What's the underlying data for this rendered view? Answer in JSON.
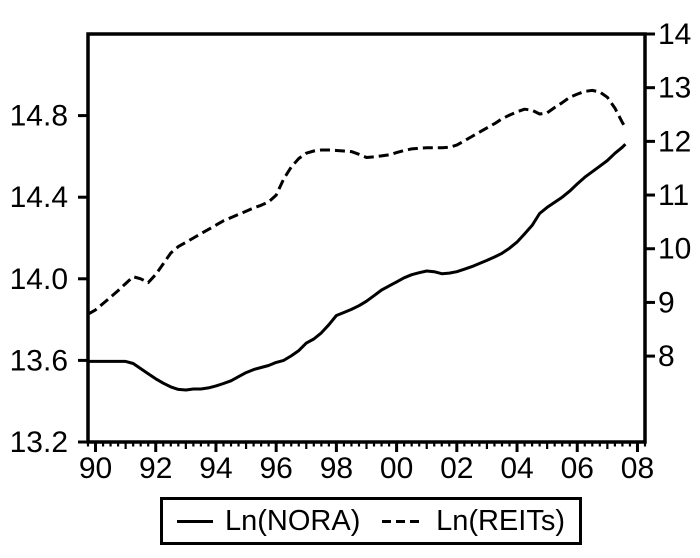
{
  "figure": {
    "background": "#ffffff",
    "ink_color": "#000000"
  },
  "legend": {
    "items": [
      {
        "label": "Ln(NORA)",
        "swatch": "solid-line"
      },
      {
        "label": "Ln(REITs)",
        "swatch": "dashed-line"
      }
    ]
  },
  "chart_data": {
    "type": "line",
    "title": "",
    "xlabel": "",
    "ylabel_left": "",
    "ylabel_right": "",
    "grid": false,
    "legend_position": "bottom",
    "x_axis": {
      "min": 1989.75,
      "max": 2008.25,
      "minor_step_years": 0.25,
      "major_tick_years": [
        1990,
        1992,
        1994,
        1996,
        1998,
        2000,
        2002,
        2004,
        2006,
        2008
      ],
      "tick_labels": [
        "90",
        "92",
        "94",
        "96",
        "98",
        "00",
        "02",
        "04",
        "06",
        "08"
      ]
    },
    "left_axis": {
      "series": "Ln(NORA)",
      "min": 13.2,
      "max": 15.2,
      "ticks": [
        13.2,
        13.6,
        14.0,
        14.4,
        14.8
      ],
      "tick_labels": [
        "13.2",
        "13.6",
        "14.0",
        "14.4",
        "14.8"
      ]
    },
    "right_axis": {
      "series": "Ln(REITs)",
      "min": 6.4,
      "max": 14.0,
      "ticks": [
        8,
        9,
        10,
        11,
        12,
        13,
        14
      ],
      "tick_labels": [
        "8",
        "9",
        "10",
        "11",
        "12",
        "13",
        "14"
      ]
    },
    "series": [
      {
        "name": "Ln(NORA)",
        "axis": "left",
        "line_style": "solid",
        "color": "#000000",
        "points": [
          [
            1989.75,
            13.595
          ],
          [
            1990.0,
            13.595
          ],
          [
            1990.25,
            13.595
          ],
          [
            1990.5,
            13.595
          ],
          [
            1990.75,
            13.595
          ],
          [
            1991.0,
            13.595
          ],
          [
            1991.25,
            13.585
          ],
          [
            1991.5,
            13.56
          ],
          [
            1991.75,
            13.535
          ],
          [
            1992.0,
            13.51
          ],
          [
            1992.25,
            13.488
          ],
          [
            1992.5,
            13.47
          ],
          [
            1992.75,
            13.458
          ],
          [
            1993.0,
            13.455
          ],
          [
            1993.25,
            13.46
          ],
          [
            1993.5,
            13.46
          ],
          [
            1993.75,
            13.465
          ],
          [
            1994.0,
            13.475
          ],
          [
            1994.25,
            13.487
          ],
          [
            1994.5,
            13.5
          ],
          [
            1994.75,
            13.52
          ],
          [
            1995.0,
            13.54
          ],
          [
            1995.25,
            13.555
          ],
          [
            1995.5,
            13.565
          ],
          [
            1995.75,
            13.575
          ],
          [
            1996.0,
            13.59
          ],
          [
            1996.25,
            13.6
          ],
          [
            1996.5,
            13.622
          ],
          [
            1996.75,
            13.648
          ],
          [
            1997.0,
            13.685
          ],
          [
            1997.25,
            13.705
          ],
          [
            1997.5,
            13.735
          ],
          [
            1997.75,
            13.775
          ],
          [
            1998.0,
            13.82
          ],
          [
            1998.25,
            13.835
          ],
          [
            1998.5,
            13.85
          ],
          [
            1998.75,
            13.868
          ],
          [
            1999.0,
            13.89
          ],
          [
            1999.25,
            13.917
          ],
          [
            1999.5,
            13.945
          ],
          [
            1999.75,
            13.965
          ],
          [
            2000.0,
            13.985
          ],
          [
            2000.25,
            14.005
          ],
          [
            2000.5,
            14.02
          ],
          [
            2000.75,
            14.03
          ],
          [
            2001.0,
            14.038
          ],
          [
            2001.25,
            14.035
          ],
          [
            2001.5,
            14.025
          ],
          [
            2001.75,
            14.028
          ],
          [
            2002.0,
            14.035
          ],
          [
            2002.25,
            14.047
          ],
          [
            2002.5,
            14.06
          ],
          [
            2002.75,
            14.075
          ],
          [
            2003.0,
            14.09
          ],
          [
            2003.25,
            14.107
          ],
          [
            2003.5,
            14.125
          ],
          [
            2003.75,
            14.15
          ],
          [
            2004.0,
            14.18
          ],
          [
            2004.25,
            14.22
          ],
          [
            2004.5,
            14.262
          ],
          [
            2004.75,
            14.32
          ],
          [
            2005.0,
            14.35
          ],
          [
            2005.25,
            14.375
          ],
          [
            2005.5,
            14.4
          ],
          [
            2005.75,
            14.43
          ],
          [
            2006.0,
            14.465
          ],
          [
            2006.25,
            14.498
          ],
          [
            2006.5,
            14.525
          ],
          [
            2006.75,
            14.552
          ],
          [
            2007.0,
            14.58
          ],
          [
            2007.25,
            14.615
          ],
          [
            2007.5,
            14.645
          ],
          [
            2007.6,
            14.66
          ]
        ]
      },
      {
        "name": "Ln(REITs)",
        "axis": "right",
        "line_style": "dashed",
        "color": "#000000",
        "points": [
          [
            1989.75,
            8.78
          ],
          [
            1990.0,
            8.86
          ],
          [
            1990.25,
            8.98
          ],
          [
            1990.5,
            9.1
          ],
          [
            1990.75,
            9.22
          ],
          [
            1991.0,
            9.35
          ],
          [
            1991.25,
            9.48
          ],
          [
            1991.5,
            9.44
          ],
          [
            1991.75,
            9.37
          ],
          [
            1992.0,
            9.52
          ],
          [
            1992.25,
            9.72
          ],
          [
            1992.5,
            9.92
          ],
          [
            1992.75,
            10.04
          ],
          [
            1993.0,
            10.12
          ],
          [
            1993.25,
            10.2
          ],
          [
            1993.5,
            10.28
          ],
          [
            1993.75,
            10.36
          ],
          [
            1994.0,
            10.44
          ],
          [
            1994.25,
            10.52
          ],
          [
            1994.5,
            10.58
          ],
          [
            1994.75,
            10.64
          ],
          [
            1995.0,
            10.7
          ],
          [
            1995.25,
            10.76
          ],
          [
            1995.5,
            10.81
          ],
          [
            1995.75,
            10.87
          ],
          [
            1996.0,
            11.0
          ],
          [
            1996.25,
            11.3
          ],
          [
            1996.5,
            11.52
          ],
          [
            1996.75,
            11.68
          ],
          [
            1997.0,
            11.78
          ],
          [
            1997.25,
            11.82
          ],
          [
            1997.5,
            11.84
          ],
          [
            1997.75,
            11.84
          ],
          [
            1998.0,
            11.83
          ],
          [
            1998.25,
            11.82
          ],
          [
            1998.5,
            11.81
          ],
          [
            1998.75,
            11.76
          ],
          [
            1999.0,
            11.7
          ],
          [
            1999.25,
            11.71
          ],
          [
            1999.5,
            11.73
          ],
          [
            1999.75,
            11.75
          ],
          [
            2000.0,
            11.79
          ],
          [
            2000.25,
            11.83
          ],
          [
            2000.5,
            11.86
          ],
          [
            2000.75,
            11.87
          ],
          [
            2001.0,
            11.88
          ],
          [
            2001.25,
            11.88
          ],
          [
            2001.5,
            11.88
          ],
          [
            2001.75,
            11.89
          ],
          [
            2002.0,
            11.93
          ],
          [
            2002.25,
            12.01
          ],
          [
            2002.5,
            12.09
          ],
          [
            2002.75,
            12.17
          ],
          [
            2003.0,
            12.25
          ],
          [
            2003.25,
            12.33
          ],
          [
            2003.5,
            12.42
          ],
          [
            2003.75,
            12.49
          ],
          [
            2004.0,
            12.55
          ],
          [
            2004.25,
            12.6
          ],
          [
            2004.5,
            12.58
          ],
          [
            2004.75,
            12.51
          ],
          [
            2005.0,
            12.53
          ],
          [
            2005.25,
            12.63
          ],
          [
            2005.5,
            12.72
          ],
          [
            2005.75,
            12.82
          ],
          [
            2006.0,
            12.88
          ],
          [
            2006.25,
            12.93
          ],
          [
            2006.5,
            12.95
          ],
          [
            2006.75,
            12.92
          ],
          [
            2007.0,
            12.82
          ],
          [
            2007.25,
            12.62
          ],
          [
            2007.5,
            12.35
          ],
          [
            2007.6,
            12.26
          ]
        ]
      }
    ]
  }
}
